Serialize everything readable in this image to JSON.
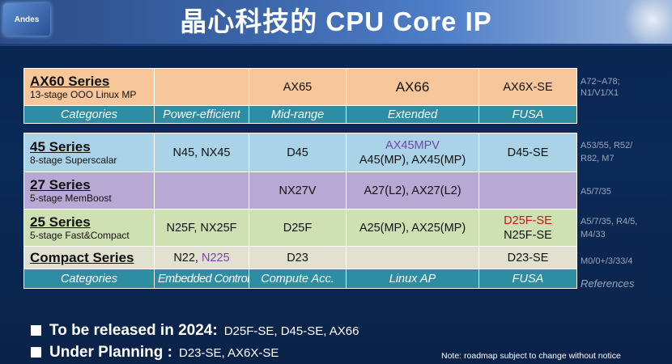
{
  "title": "晶心科技的 CPU Core IP",
  "logo_text": "Andes",
  "top_table": {
    "series": {
      "name": "AX60 Series",
      "sub": "13-stage OOO Linux MP"
    },
    "cells": [
      "",
      "AX65",
      "AX66",
      "AX6X-SE"
    ],
    "categories": [
      "Categories",
      "Power-efficient",
      "Mid-range",
      "Extended",
      "FUSA"
    ],
    "side": "A72~A78;\nN1/V1/X1"
  },
  "rows": [
    {
      "name": "45 Series",
      "sub": "8-stage Superscalar",
      "c1": "N45, NX45",
      "c2": "D45",
      "c3a": "AX45MPV",
      "c3b": "A45(MP), AX45(MP)",
      "c4a": "D45-SE",
      "c4b": "",
      "side": "A53/55, R52/\nR82, M7"
    },
    {
      "name": "27 Series",
      "sub": "5-stage MemBoost",
      "c1": "",
      "c2": "NX27V",
      "c3a": "",
      "c3b": "A27(L2), AX27(L2)",
      "c4a": "",
      "c4b": "",
      "side": "A5/7/35"
    },
    {
      "name": "25 Series",
      "sub": "5-stage Fast&Compact",
      "c1": "N25F, NX25F",
      "c2": "D25F",
      "c3a": "",
      "c3b": "A25(MP), AX25(MP)",
      "c4a": "D25F-SE",
      "c4b": "N25F-SE",
      "side": "A5/7/35, R4/5,\nM4/33"
    },
    {
      "name": "Compact Series",
      "sub": "",
      "c1a": "N22, ",
      "c1b": "N225",
      "c2": "D23",
      "c3a": "",
      "c3b": "",
      "c4a": "",
      "c4b": "D23-SE",
      "side": "M0/0+/3/33/4"
    }
  ],
  "bottom_categories": [
    "Categories",
    "Embedded Control",
    "Compute Acc.",
    "Linux AP",
    "FUSA"
  ],
  "bottom_side": "References",
  "bullets": [
    {
      "bold": "To be released in 2024:",
      "rest": "D25F-SE, D45-SE, AX66"
    },
    {
      "bold": "Under Planning :",
      "rest": "D23-SE, AX6X-SE"
    }
  ],
  "note": "Note: roadmap subject to change without notice",
  "colors": {
    "header_teal": "#2d8da3",
    "ax60_orange": "#f7c69a",
    "s45_blue": "#aad3e8",
    "s27_purple": "#b8a9d4",
    "s25_green": "#cfe0b2",
    "compact_gray": "#e2e1cf"
  }
}
